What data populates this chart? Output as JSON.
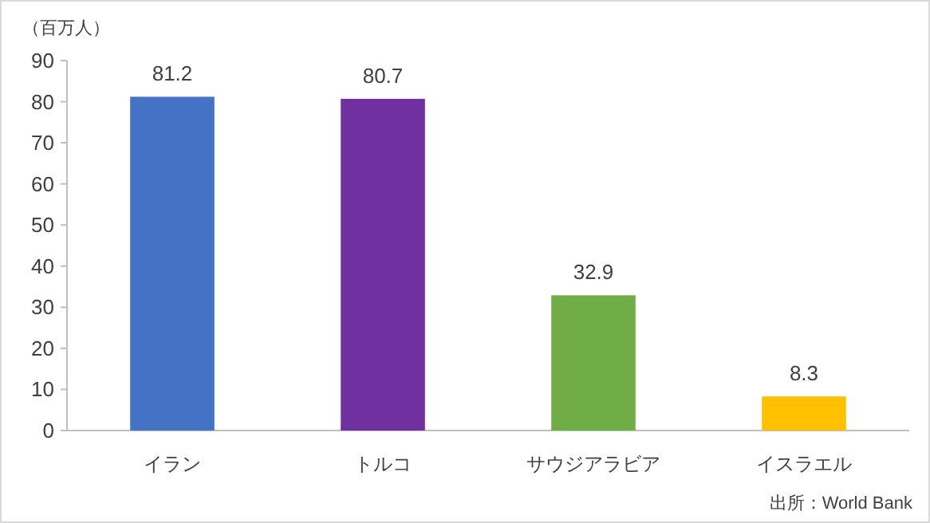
{
  "chart_data": {
    "type": "bar",
    "ylabel": "（百万人）",
    "categories": [
      "イラン",
      "トルコ",
      "サウジアラビア",
      "イスラエル"
    ],
    "values": [
      81.2,
      80.7,
      32.9,
      8.3
    ],
    "colors": [
      "#4472c4",
      "#7030a0",
      "#70ad47",
      "#ffc000"
    ],
    "ylim": [
      0,
      90
    ],
    "yticks": [
      0,
      10,
      20,
      30,
      40,
      50,
      60,
      70,
      80,
      90
    ],
    "data_labels": true,
    "grid": false,
    "annotations": [
      "出所：World Bank"
    ]
  }
}
